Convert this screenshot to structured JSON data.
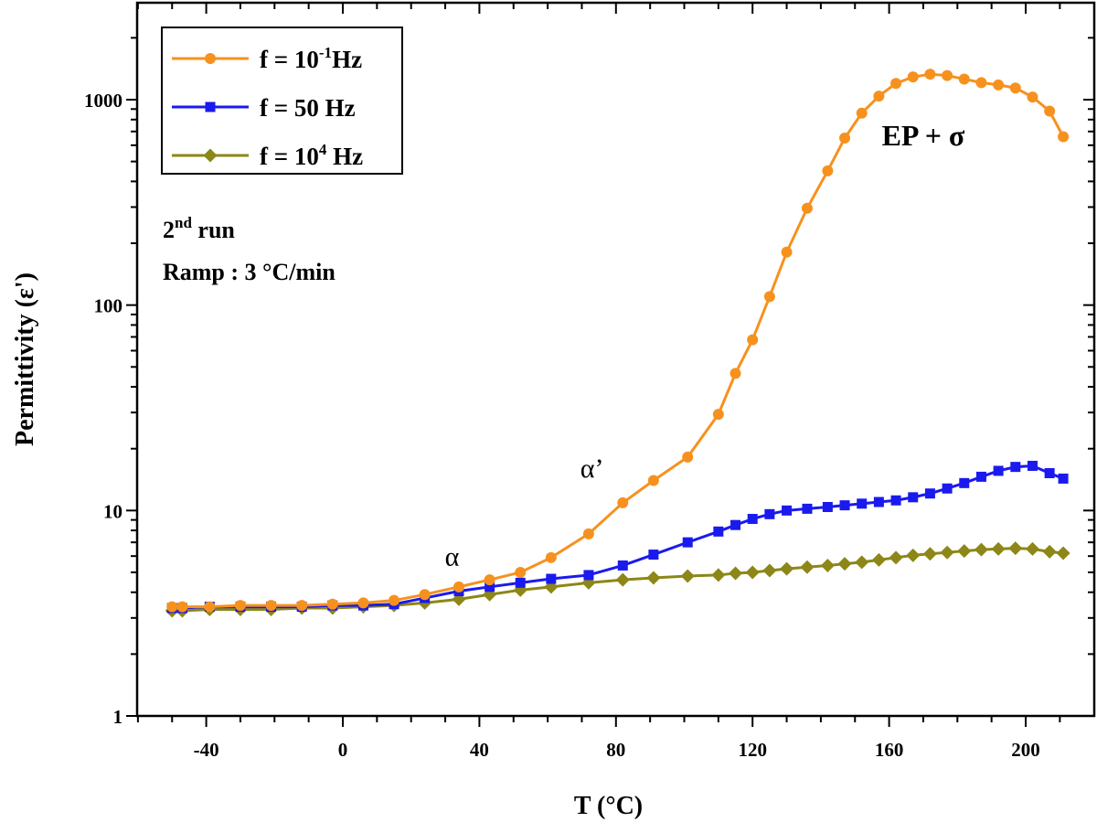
{
  "chart_data": {
    "type": "line",
    "xlabel": "T (°C)",
    "ylabel": "Permittivity (ε')",
    "xlim": [
      -65,
      215
    ],
    "ylim": [
      1,
      3000
    ],
    "yscale": "log",
    "xticks": [
      -40,
      0,
      40,
      80,
      120,
      160,
      200
    ],
    "yticks": [
      1,
      10,
      100,
      1000
    ],
    "legend_position": "top-left",
    "grid": false,
    "series": [
      {
        "name": "f = 10^-1 Hz",
        "name_main": "f = 10",
        "name_sup": "-1",
        "name_tail": "Hz",
        "color": "#F7911E",
        "marker": "circle",
        "x": [
          -50,
          -47,
          -39,
          -30,
          -21,
          -12,
          -3,
          6,
          15,
          24,
          34,
          43,
          52,
          61,
          72,
          82,
          91,
          101,
          110,
          115,
          120,
          125,
          130,
          136,
          142,
          147,
          152,
          157,
          162,
          167,
          172,
          177,
          182,
          187,
          192,
          197,
          202,
          207,
          211
        ],
        "y": [
          3.4,
          3.4,
          3.4,
          3.45,
          3.45,
          3.45,
          3.5,
          3.55,
          3.65,
          3.9,
          4.25,
          4.6,
          5.0,
          5.9,
          7.7,
          10.9,
          14.0,
          18.2,
          29.4,
          46.5,
          67.8,
          110,
          181,
          296,
          450,
          650,
          860,
          1040,
          1200,
          1290,
          1330,
          1310,
          1260,
          1210,
          1180,
          1140,
          1030,
          880,
          660
        ]
      },
      {
        "name": "f = 50 Hz",
        "name_main": "f = 50 Hz",
        "name_sup": "",
        "name_tail": "",
        "color": "#1A1AEE",
        "marker": "square",
        "x": [
          -50,
          -47,
          -39,
          -30,
          -21,
          -12,
          -3,
          6,
          15,
          24,
          34,
          43,
          52,
          61,
          72,
          82,
          91,
          101,
          110,
          115,
          120,
          125,
          130,
          136,
          142,
          147,
          152,
          157,
          162,
          167,
          172,
          177,
          182,
          187,
          192,
          197,
          202,
          207,
          211
        ],
        "y": [
          3.35,
          3.35,
          3.4,
          3.4,
          3.4,
          3.4,
          3.45,
          3.45,
          3.5,
          3.75,
          4.05,
          4.25,
          4.45,
          4.65,
          4.85,
          5.4,
          6.1,
          7.0,
          7.9,
          8.5,
          9.1,
          9.6,
          10.0,
          10.2,
          10.4,
          10.6,
          10.8,
          11.0,
          11.2,
          11.6,
          12.1,
          12.8,
          13.6,
          14.6,
          15.6,
          16.3,
          16.5,
          15.2,
          14.3
        ]
      },
      {
        "name": "f = 10^4 Hz",
        "name_main": "f = 10",
        "name_sup": "4",
        "name_tail": " Hz",
        "color": "#8C8717",
        "marker": "diamond",
        "x": [
          -50,
          -47,
          -39,
          -30,
          -21,
          -12,
          -3,
          6,
          15,
          24,
          34,
          43,
          52,
          61,
          72,
          82,
          91,
          101,
          110,
          115,
          120,
          125,
          130,
          136,
          142,
          147,
          152,
          157,
          162,
          167,
          172,
          177,
          182,
          187,
          192,
          197,
          202,
          207,
          211
        ],
        "y": [
          3.25,
          3.25,
          3.3,
          3.3,
          3.3,
          3.35,
          3.35,
          3.4,
          3.45,
          3.55,
          3.7,
          3.9,
          4.1,
          4.25,
          4.45,
          4.6,
          4.7,
          4.8,
          4.85,
          4.95,
          5.0,
          5.1,
          5.2,
          5.3,
          5.4,
          5.5,
          5.6,
          5.75,
          5.9,
          6.05,
          6.15,
          6.25,
          6.35,
          6.45,
          6.5,
          6.55,
          6.5,
          6.3,
          6.2
        ]
      }
    ],
    "notes": {
      "run_main": "2",
      "run_sup": "nd",
      "run_tail": " run",
      "ramp": "Ramp : 3 °C/min"
    },
    "annotations": [
      {
        "text": "α",
        "x": 32,
        "y": 5.4,
        "style": "plain"
      },
      {
        "text": "α’",
        "x": 73,
        "y": 14.5,
        "style": "plain"
      },
      {
        "text": "EP + σ",
        "x": 170,
        "y": 600,
        "style": "bold"
      }
    ]
  }
}
